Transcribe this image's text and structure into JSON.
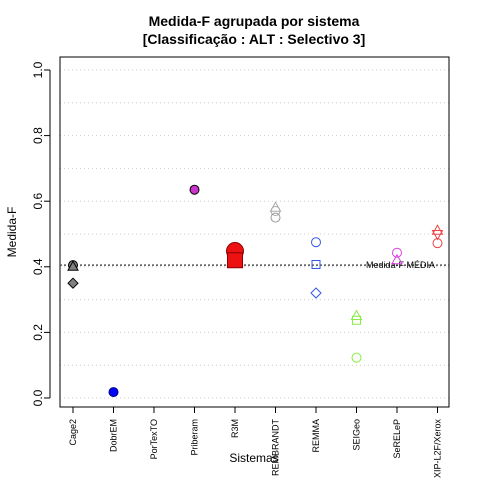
{
  "chart_data": {
    "type": "scatter",
    "title": "Medida-F agrupada por sistema",
    "subtitle": "[Classificação : ALT : Selectivo 3]",
    "xlabel": "Sistemas",
    "ylabel": "Medida-F",
    "ylim": [
      0.0,
      1.0
    ],
    "yticks": [
      "0.0",
      "0.2",
      "0.4",
      "0.6",
      "0.8",
      "1.0"
    ],
    "categories": [
      "Cage2",
      "DobrEM",
      "PorTexTO",
      "Priberam",
      "R3M",
      "REMBRANDT",
      "REMMA",
      "SEIGeo",
      "SeRELeP",
      "XIP-L2F/Xerox"
    ],
    "grid": "dotted horizontal",
    "reference_line": {
      "label": "Medida-F MÉDIA",
      "value": 0.405
    },
    "points": [
      {
        "category": "Cage2",
        "y": 0.405,
        "marker": "circle",
        "fill": "#808080",
        "stroke": "#000000"
      },
      {
        "category": "Cage2",
        "y": 0.4,
        "marker": "triangle",
        "fill": "#808080",
        "stroke": "#000000"
      },
      {
        "category": "Cage2",
        "y": 0.35,
        "marker": "diamond",
        "fill": "#808080",
        "stroke": "#000000"
      },
      {
        "category": "DobrEM",
        "y": 0.018,
        "marker": "circle",
        "fill": "#0000ff",
        "stroke": "#000080"
      },
      {
        "category": "Priberam",
        "y": 0.635,
        "marker": "circle",
        "fill": "#cc33cc",
        "stroke": "#000000"
      },
      {
        "category": "R3M",
        "y": 0.448,
        "marker": "circle-large",
        "fill": "#ee1111",
        "stroke": "#880000"
      },
      {
        "category": "R3M",
        "y": 0.42,
        "marker": "square-large",
        "fill": "#ee1111",
        "stroke": "#880000"
      },
      {
        "category": "REMBRANDT",
        "y": 0.58,
        "marker": "triangle-open",
        "fill": "none",
        "stroke": "#aaaaaa"
      },
      {
        "category": "REMBRANDT",
        "y": 0.57,
        "marker": "circle-open",
        "fill": "none",
        "stroke": "#aaaaaa"
      },
      {
        "category": "REMBRANDT",
        "y": 0.55,
        "marker": "circle-open",
        "fill": "none",
        "stroke": "#999999"
      },
      {
        "category": "REMMA",
        "y": 0.475,
        "marker": "circle-open",
        "fill": "none",
        "stroke": "#3355ee"
      },
      {
        "category": "REMMA",
        "y": 0.407,
        "marker": "square-open",
        "fill": "none",
        "stroke": "#3355ee"
      },
      {
        "category": "REMMA",
        "y": 0.32,
        "marker": "diamond-open",
        "fill": "none",
        "stroke": "#3355ee"
      },
      {
        "category": "SEIGeo",
        "y": 0.25,
        "marker": "triangle-open",
        "fill": "none",
        "stroke": "#88ee44"
      },
      {
        "category": "SEIGeo",
        "y": 0.237,
        "marker": "square-open",
        "fill": "none",
        "stroke": "#88ee44"
      },
      {
        "category": "SEIGeo",
        "y": 0.123,
        "marker": "circle-open",
        "fill": "none",
        "stroke": "#88ee44"
      },
      {
        "category": "SeRELeP",
        "y": 0.443,
        "marker": "circle-open",
        "fill": "none",
        "stroke": "#dd44dd"
      },
      {
        "category": "SeRELeP",
        "y": 0.42,
        "marker": "triangle-open",
        "fill": "none",
        "stroke": "#dd44dd"
      },
      {
        "category": "XIP-L2F/Xerox",
        "y": 0.51,
        "marker": "triangle-open",
        "fill": "none",
        "stroke": "#ee4444"
      },
      {
        "category": "XIP-L2F/Xerox",
        "y": 0.5,
        "marker": "triangle-down-open",
        "fill": "none",
        "stroke": "#ee4444"
      },
      {
        "category": "XIP-L2F/Xerox",
        "y": 0.472,
        "marker": "circle-open",
        "fill": "none",
        "stroke": "#ee4444"
      }
    ]
  }
}
